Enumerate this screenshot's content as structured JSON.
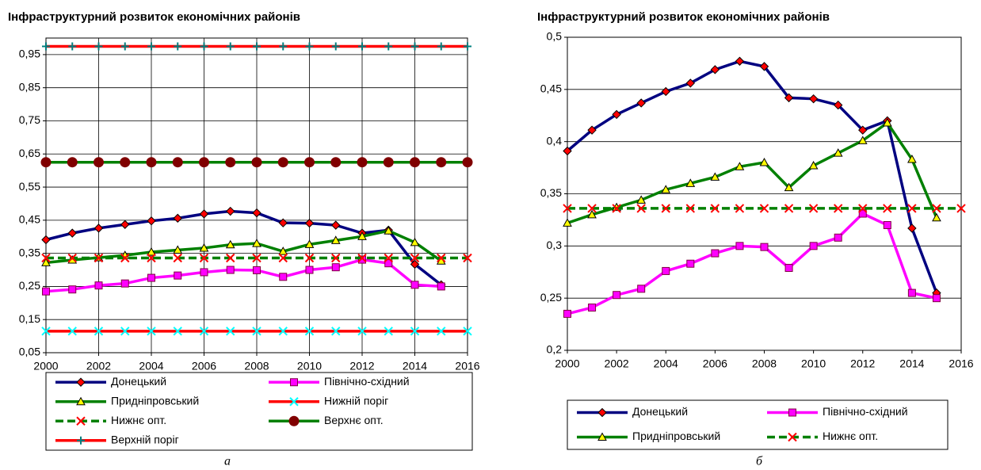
{
  "chart_data": [
    {
      "type": "line",
      "title": "Інфраструктурний розвиток економічних районів",
      "caption": "а",
      "x": [
        2000,
        2001,
        2002,
        2003,
        2004,
        2005,
        2006,
        2007,
        2008,
        2009,
        2010,
        2011,
        2012,
        2013,
        2014,
        2015,
        2016
      ],
      "xlim": [
        2000,
        2016
      ],
      "xticks": [
        2000,
        2002,
        2004,
        2006,
        2008,
        2010,
        2012,
        2014,
        2016
      ],
      "ylim": [
        0.05,
        1.0
      ],
      "yticks": [
        {
          "value": 0.05,
          "label": "0,05"
        },
        {
          "value": 0.15,
          "label": "0,15"
        },
        {
          "value": 0.25,
          "label": "0,25"
        },
        {
          "value": 0.35,
          "label": "0,35"
        },
        {
          "value": 0.45,
          "label": "0,45"
        },
        {
          "value": 0.55,
          "label": "0,55"
        },
        {
          "value": 0.65,
          "label": "0,65"
        },
        {
          "value": 0.75,
          "label": "0,75"
        },
        {
          "value": 0.85,
          "label": "0,85"
        },
        {
          "value": 0.95,
          "label": "0,95"
        }
      ],
      "grid": true,
      "xgrid": true,
      "series": [
        {
          "name": "Донецький",
          "color": "#000080",
          "marker": "diamond",
          "marker_color": "#ff0000",
          "values": [
            0.391,
            0.411,
            0.426,
            0.437,
            0.448,
            0.456,
            0.469,
            0.477,
            0.472,
            0.442,
            0.441,
            0.435,
            0.411,
            0.42,
            0.317,
            0.255,
            null
          ]
        },
        {
          "name": "Північно-східний",
          "color": "#ff00ff",
          "marker": "square",
          "marker_color": "#ff00ff",
          "values": [
            0.235,
            0.241,
            0.253,
            0.259,
            0.276,
            0.283,
            0.293,
            0.3,
            0.299,
            0.279,
            0.3,
            0.308,
            0.331,
            0.32,
            0.255,
            0.25,
            null
          ]
        },
        {
          "name": "Придніпровський",
          "color": "#008000",
          "marker": "triangle",
          "marker_color": "#ffff00",
          "values": [
            0.322,
            0.33,
            0.337,
            0.344,
            0.354,
            0.36,
            0.366,
            0.376,
            0.38,
            0.356,
            0.377,
            0.389,
            0.401,
            0.418,
            0.383,
            0.327,
            null
          ]
        },
        {
          "name": "Нижній поріг",
          "color": "#ff0000",
          "marker": "x",
          "marker_color": "#00ffff",
          "values": [
            0.115,
            0.115,
            0.115,
            0.115,
            0.115,
            0.115,
            0.115,
            0.115,
            0.115,
            0.115,
            0.115,
            0.115,
            0.115,
            0.115,
            0.115,
            0.115,
            0.115
          ]
        },
        {
          "name": "Нижнє опт.",
          "color": "#008000",
          "dash": true,
          "marker": "x",
          "marker_color": "#ff0000",
          "values": [
            0.336,
            0.336,
            0.336,
            0.336,
            0.336,
            0.336,
            0.336,
            0.336,
            0.336,
            0.336,
            0.336,
            0.336,
            0.336,
            0.336,
            0.336,
            0.336,
            0.336
          ]
        },
        {
          "name": "Верхнє опт.",
          "color": "#008000",
          "marker": "circle",
          "marker_color": "#800000",
          "values": [
            0.625,
            0.625,
            0.625,
            0.625,
            0.625,
            0.625,
            0.625,
            0.625,
            0.625,
            0.625,
            0.625,
            0.625,
            0.625,
            0.625,
            0.625,
            0.625,
            0.625
          ]
        },
        {
          "name": "Верхній поріг",
          "color": "#ff0000",
          "marker": "plus",
          "marker_color": "#008080",
          "values": [
            0.975,
            0.975,
            0.975,
            0.975,
            0.975,
            0.975,
            0.975,
            0.975,
            0.975,
            0.975,
            0.975,
            0.975,
            0.975,
            0.975,
            0.975,
            0.975,
            0.975
          ]
        }
      ]
    },
    {
      "type": "line",
      "title": "Інфраструктурний розвиток економічних районів",
      "caption": "б",
      "x": [
        2000,
        2001,
        2002,
        2003,
        2004,
        2005,
        2006,
        2007,
        2008,
        2009,
        2010,
        2011,
        2012,
        2013,
        2014,
        2015,
        2016
      ],
      "xlim": [
        2000,
        2016
      ],
      "xticks": [
        2000,
        2002,
        2004,
        2006,
        2008,
        2010,
        2012,
        2014,
        2016
      ],
      "ylim": [
        0.2,
        0.5
      ],
      "yticks": [
        {
          "value": 0.2,
          "label": "0,2"
        },
        {
          "value": 0.25,
          "label": "0,25"
        },
        {
          "value": 0.3,
          "label": "0,3"
        },
        {
          "value": 0.35,
          "label": "0,35"
        },
        {
          "value": 0.4,
          "label": "0,4"
        },
        {
          "value": 0.45,
          "label": "0,45"
        },
        {
          "value": 0.5,
          "label": "0,5"
        }
      ],
      "grid": true,
      "xgrid": false,
      "series": [
        {
          "name": "Донецький",
          "color": "#000080",
          "marker": "diamond",
          "marker_color": "#ff0000",
          "values": [
            0.391,
            0.411,
            0.426,
            0.437,
            0.448,
            0.456,
            0.469,
            0.477,
            0.472,
            0.442,
            0.441,
            0.435,
            0.411,
            0.42,
            0.317,
            0.255,
            null
          ]
        },
        {
          "name": "Північно-східний",
          "color": "#ff00ff",
          "marker": "square",
          "marker_color": "#ff00ff",
          "values": [
            0.235,
            0.241,
            0.253,
            0.259,
            0.276,
            0.283,
            0.293,
            0.3,
            0.299,
            0.279,
            0.3,
            0.308,
            0.331,
            0.32,
            0.255,
            0.25,
            null
          ]
        },
        {
          "name": "Придніпровський",
          "color": "#008000",
          "marker": "triangle",
          "marker_color": "#ffff00",
          "values": [
            0.322,
            0.33,
            0.337,
            0.344,
            0.354,
            0.36,
            0.366,
            0.376,
            0.38,
            0.356,
            0.377,
            0.389,
            0.401,
            0.418,
            0.383,
            0.327,
            null
          ]
        },
        {
          "name": "Нижнє опт.",
          "color": "#008000",
          "dash": true,
          "marker": "x",
          "marker_color": "#ff0000",
          "values": [
            0.336,
            0.336,
            0.336,
            0.336,
            0.336,
            0.336,
            0.336,
            0.336,
            0.336,
            0.336,
            0.336,
            0.336,
            0.336,
            0.336,
            0.336,
            0.336,
            0.336
          ]
        }
      ]
    }
  ]
}
